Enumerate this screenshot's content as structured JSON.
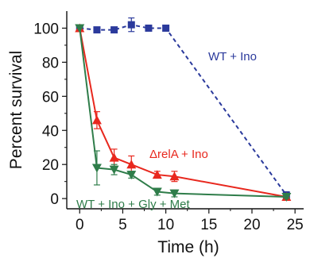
{
  "chart_data": {
    "type": "line",
    "xlabel": "Time (h)",
    "ylabel": "Percent survival",
    "xlim": [
      -1.5,
      26
    ],
    "ylim": [
      -6,
      110
    ],
    "x_ticks": [
      "0",
      "5",
      "10",
      "15",
      "20",
      "25"
    ],
    "y_ticks": [
      "0",
      "20",
      "40",
      "60",
      "80",
      "100"
    ],
    "series": [
      {
        "name": "WT + Ino",
        "color": "#2b3a9c",
        "marker": "square",
        "line_style": "dashed",
        "x": [
          0,
          2,
          4,
          6,
          8,
          10,
          24
        ],
        "y": [
          100,
          99,
          99,
          102,
          100,
          100,
          2
        ],
        "err": [
          0,
          0,
          0,
          4,
          0,
          0,
          2
        ]
      },
      {
        "name": "ΔrelA + Ino",
        "color": "#e8281e",
        "marker": "triangle-up",
        "line_style": "solid",
        "x": [
          0,
          2,
          4,
          6,
          9,
          11,
          24
        ],
        "y": [
          100,
          46,
          24,
          20,
          14,
          13,
          1
        ],
        "err": [
          0,
          5,
          5,
          5,
          2,
          3,
          1
        ]
      },
      {
        "name": "WT + Ino + Gly + Met",
        "color": "#2f7d4a",
        "marker": "triangle-down",
        "line_style": "solid",
        "x": [
          0,
          2,
          4,
          6,
          9,
          11,
          24
        ],
        "y": [
          100,
          18,
          17,
          14,
          4,
          3,
          1
        ],
        "err": [
          0,
          10,
          3,
          2,
          2,
          2,
          1
        ]
      }
    ]
  }
}
